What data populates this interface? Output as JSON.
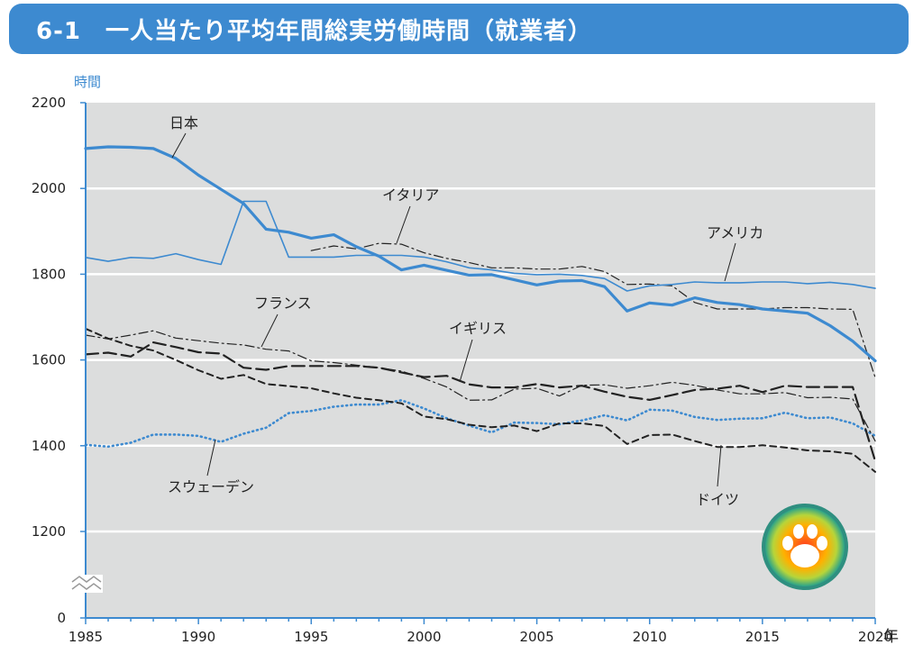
{
  "header": {
    "title": "6-1　一人当たり平均年間総実労働時間（就業者）"
  },
  "chart_data": {
    "type": "line",
    "title": "一人当たり平均年間総実労働時間（就業者）",
    "ylabel": "時間",
    "xlabel": "年",
    "ylim": [
      0,
      2200
    ],
    "axis_break": [
      0,
      1200
    ],
    "yticks": [
      0,
      1200,
      1400,
      1600,
      1800,
      2000,
      2200
    ],
    "xlim": [
      1985,
      2020
    ],
    "xticks": [
      1985,
      1990,
      1995,
      2000,
      2005,
      2010,
      2015,
      2020
    ],
    "grid": "horizontal",
    "colors": {
      "plot_bg": "#dcdddd",
      "japan": "#3d8ad0",
      "usa": "#3d8ad0",
      "sweden": "#3d8ad0",
      "gray": "#222222"
    },
    "series": [
      {
        "name": "日本",
        "style": "solid-thick",
        "x_start": 1985,
        "values": [
          2093,
          2097,
          2096,
          2093,
          2070,
          2031,
          1998,
          1965,
          1905,
          1898,
          1884,
          1892,
          1864,
          1842,
          1810,
          1821,
          1809,
          1798,
          1799,
          1787,
          1775,
          1784,
          1785,
          1771,
          1714,
          1733,
          1728,
          1745,
          1734,
          1729,
          1719,
          1714,
          1709,
          1680,
          1644,
          1598
        ]
      },
      {
        "name": "アメリカ",
        "style": "solid-thin",
        "x_start": 1985,
        "values": [
          1839,
          1830,
          1839,
          1837,
          1848,
          1834,
          1823,
          1970,
          1970,
          1840,
          1840,
          1840,
          1844,
          1844,
          1844,
          1840,
          1829,
          1815,
          1810,
          1802,
          1799,
          1800,
          1797,
          1790,
          1761,
          1773,
          1776,
          1782,
          1780,
          1780,
          1782,
          1782,
          1778,
          1781,
          1776,
          1767
        ]
      },
      {
        "name": "イタリア",
        "style": "dash-dot",
        "x_start": 1995,
        "values": [
          1855,
          1866,
          1859,
          1872,
          1870,
          1850,
          1837,
          1827,
          1815,
          1815,
          1812,
          1812,
          1818,
          1806,
          1776,
          1777,
          1773,
          1734,
          1719,
          1719,
          1719,
          1722,
          1722,
          1719,
          1718,
          1559
        ]
      },
      {
        "name": "イギリス",
        "style": "long-dash",
        "x_start": 1985,
        "values": [
          1613,
          1617,
          1608,
          1641,
          1630,
          1618,
          1615,
          1582,
          1577,
          1586,
          1586,
          1586,
          1586,
          1582,
          1571,
          1560,
          1563,
          1543,
          1536,
          1536,
          1544,
          1536,
          1540,
          1526,
          1514,
          1507,
          1518,
          1530,
          1533,
          1540,
          1525,
          1540,
          1537,
          1537,
          1537,
          1364
        ]
      },
      {
        "name": "フランス",
        "style": "dash-dot",
        "x_start": 1985,
        "values": [
          1658,
          1649,
          1658,
          1668,
          1651,
          1645,
          1639,
          1635,
          1625,
          1621,
          1598,
          1594,
          1588,
          1582,
          1574,
          1557,
          1537,
          1506,
          1507,
          1532,
          1534,
          1516,
          1541,
          1542,
          1534,
          1540,
          1548,
          1541,
          1530,
          1521,
          1521,
          1524,
          1512,
          1513,
          1509,
          1411
        ]
      },
      {
        "name": "ドイツ",
        "style": "short-dash",
        "x_start": 1985,
        "values": [
          1673,
          1650,
          1633,
          1622,
          1600,
          1576,
          1556,
          1565,
          1544,
          1539,
          1534,
          1522,
          1512,
          1506,
          1499,
          1468,
          1462,
          1449,
          1443,
          1447,
          1434,
          1452,
          1452,
          1446,
          1404,
          1425,
          1426,
          1411,
          1397,
          1397,
          1401,
          1396,
          1389,
          1387,
          1381,
          1339
        ]
      },
      {
        "name": "スウェーデン",
        "style": "dotted",
        "x_start": 1985,
        "values": [
          1402,
          1398,
          1407,
          1426,
          1426,
          1423,
          1409,
          1428,
          1442,
          1476,
          1481,
          1491,
          1496,
          1496,
          1506,
          1487,
          1464,
          1447,
          1431,
          1454,
          1453,
          1450,
          1459,
          1471,
          1459,
          1484,
          1482,
          1467,
          1460,
          1463,
          1464,
          1477,
          1464,
          1466,
          1452,
          1423
        ]
      }
    ]
  },
  "labels": {
    "japan": "日本",
    "italy": "イタリア",
    "usa": "アメリカ",
    "france": "フランス",
    "uk": "イギリス",
    "sweden": "スウェーデン",
    "germany": "ドイツ"
  }
}
